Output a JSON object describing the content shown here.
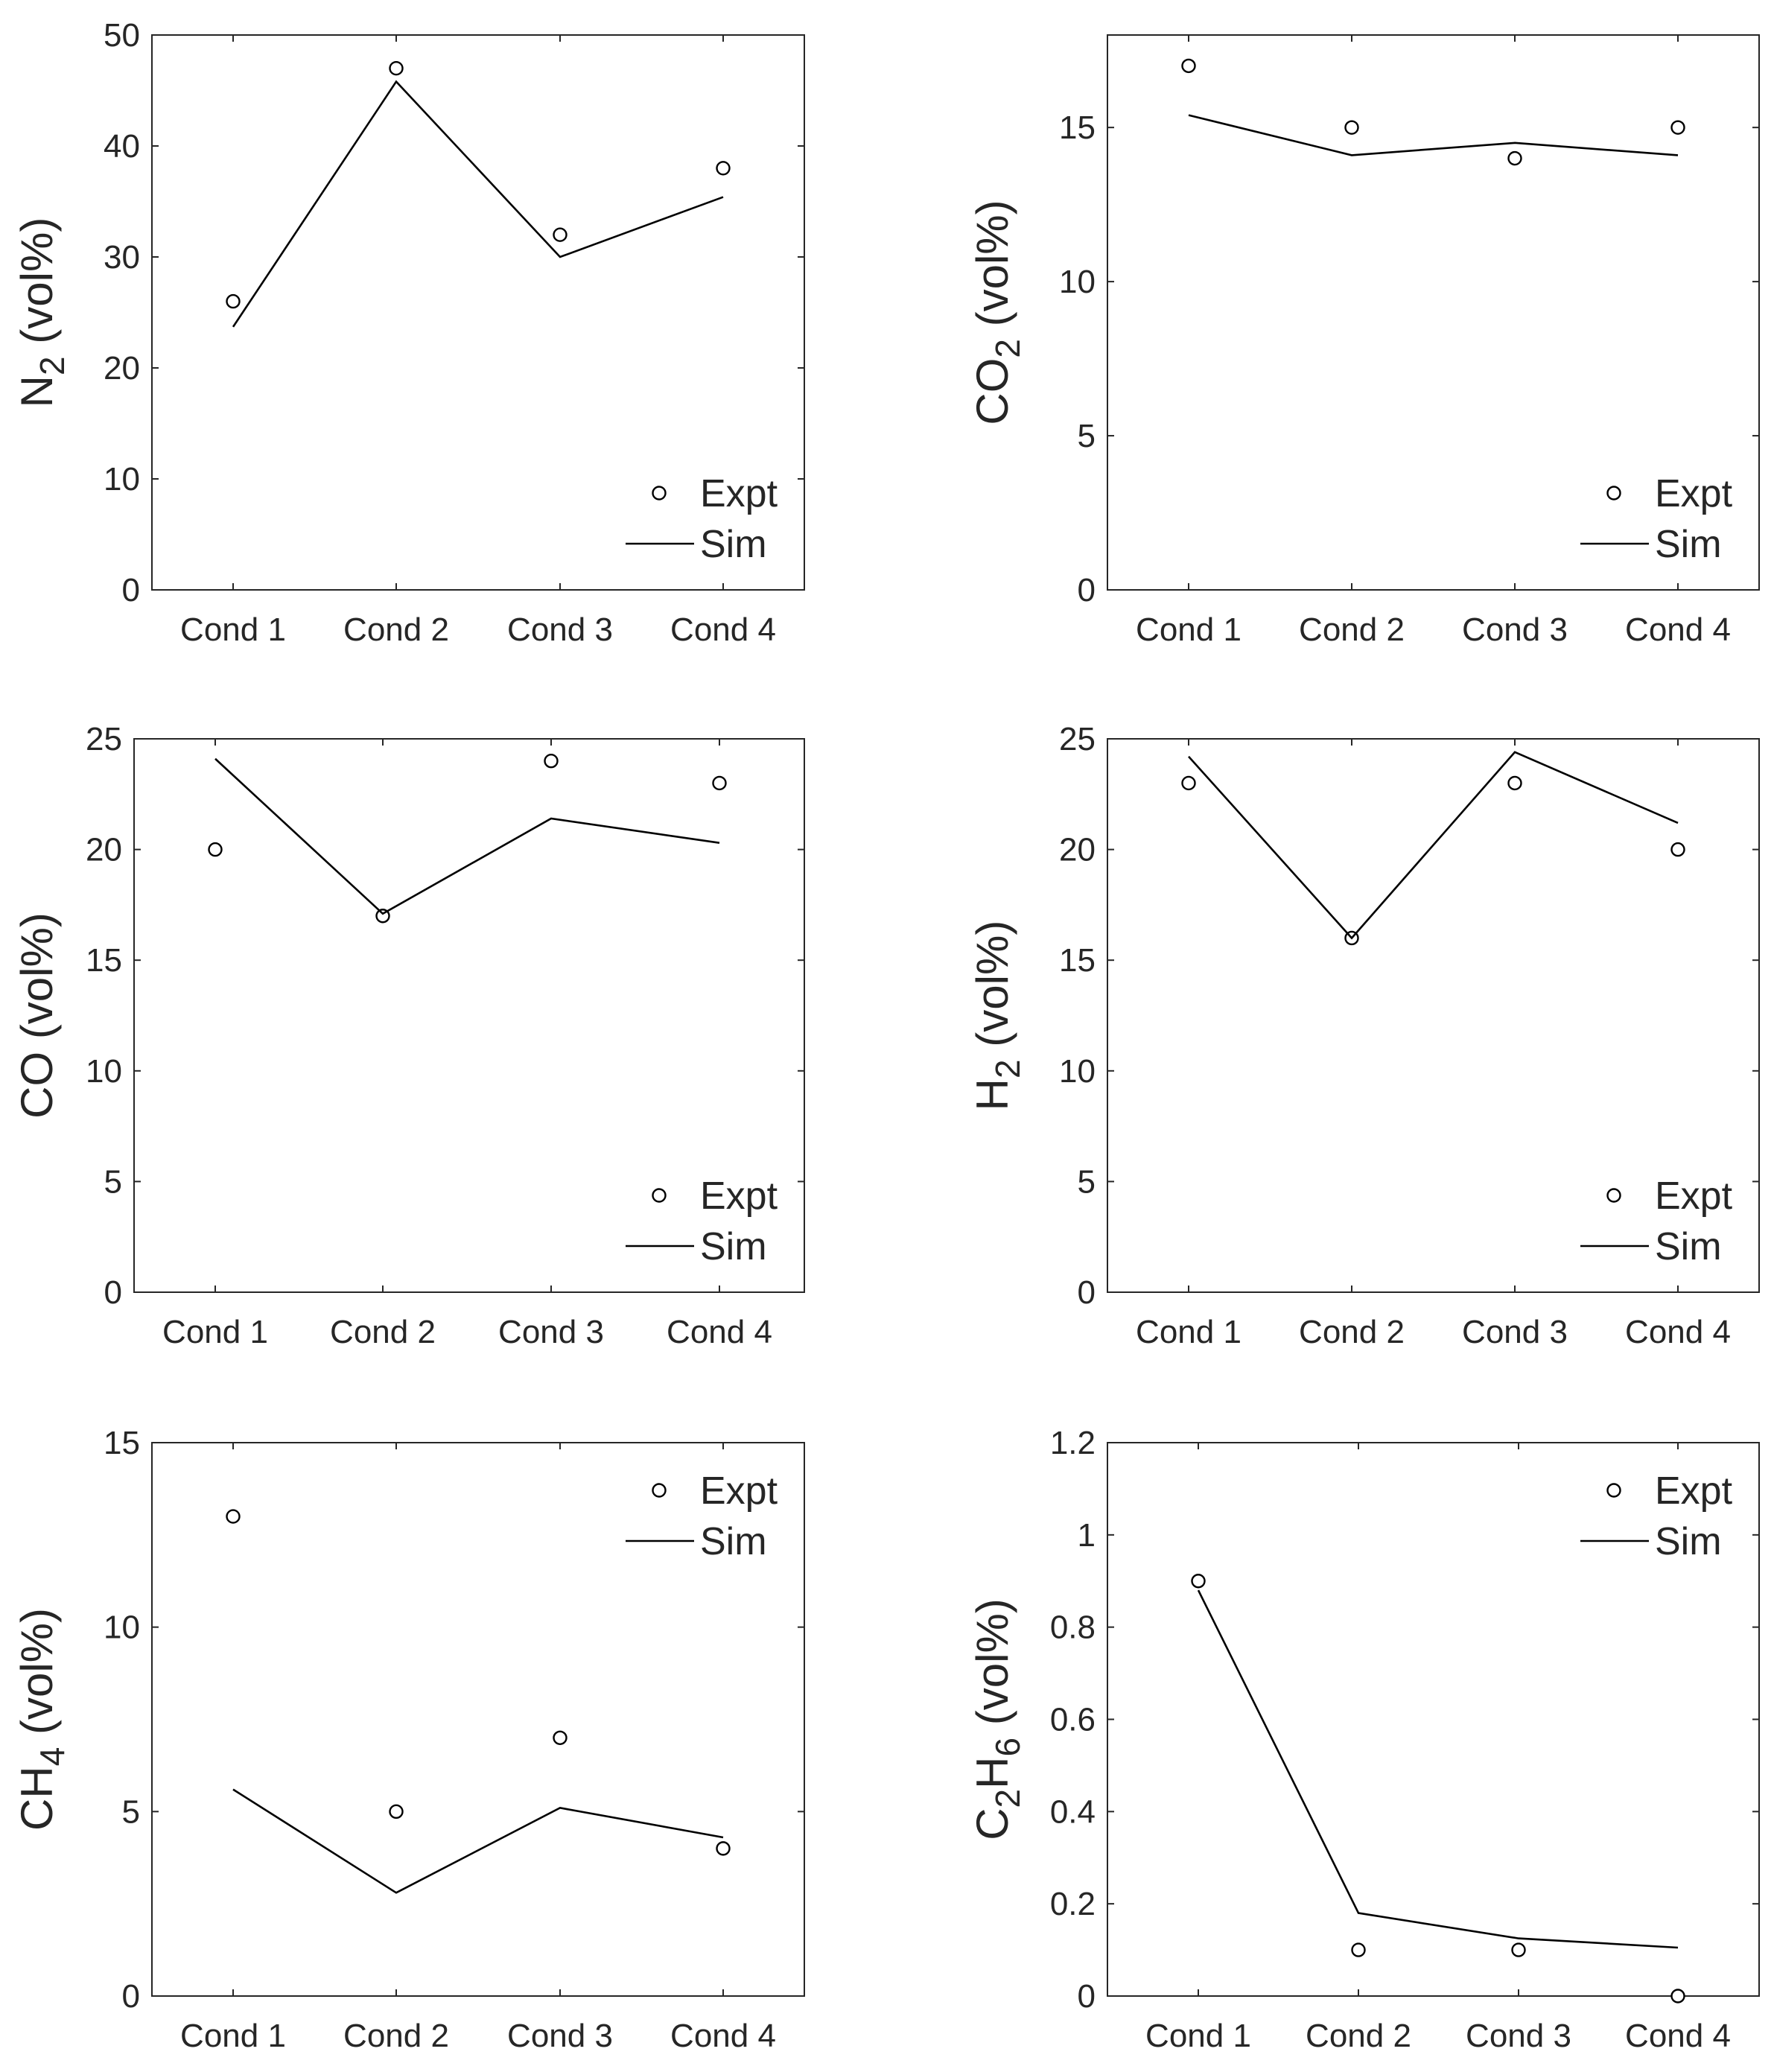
{
  "chart_data": [
    {
      "type": "line",
      "title": "",
      "xlabel": "",
      "ylabel": {
        "main": "N",
        "sub": "2",
        "suffix": " (vol%)"
      },
      "categories": [
        "Cond 1",
        "Cond 2",
        "Cond 3",
        "Cond 4"
      ],
      "ylim": [
        0,
        50
      ],
      "yticks": [
        0,
        10,
        20,
        30,
        40,
        50
      ],
      "ytick_labels": [
        "0",
        "10",
        "20",
        "30",
        "40",
        "50"
      ],
      "legend": {
        "position": "bottom-right",
        "labels": [
          "Expt",
          "Sim"
        ]
      },
      "series": [
        {
          "name": "Expt",
          "style": "markers",
          "values": [
            26,
            47,
            32,
            38
          ]
        },
        {
          "name": "Sim",
          "style": "line",
          "values": [
            23.7,
            45.8,
            30.0,
            35.4
          ]
        }
      ]
    },
    {
      "type": "line",
      "title": "",
      "xlabel": "",
      "ylabel": {
        "main": "CO",
        "sub": "2",
        "suffix": " (vol%)"
      },
      "categories": [
        "Cond 1",
        "Cond 2",
        "Cond 3",
        "Cond 4"
      ],
      "ylim": [
        0,
        18
      ],
      "yticks": [
        0,
        5,
        10,
        15
      ],
      "ytick_labels": [
        "0",
        "5",
        "10",
        "15"
      ],
      "legend": {
        "position": "bottom-right",
        "labels": [
          "Expt",
          "Sim"
        ]
      },
      "series": [
        {
          "name": "Expt",
          "style": "markers",
          "values": [
            17,
            15,
            14,
            15
          ]
        },
        {
          "name": "Sim",
          "style": "line",
          "values": [
            15.4,
            14.1,
            14.5,
            14.1
          ]
        }
      ]
    },
    {
      "type": "line",
      "title": "",
      "xlabel": "",
      "ylabel": {
        "main": "CO",
        "sub": "",
        "suffix": " (vol%)"
      },
      "categories": [
        "Cond 1",
        "Cond 2",
        "Cond 3",
        "Cond 4"
      ],
      "ylim": [
        0,
        25
      ],
      "yticks": [
        0,
        5,
        10,
        15,
        20,
        25
      ],
      "ytick_labels": [
        "0",
        "5",
        "10",
        "15",
        "20",
        "25"
      ],
      "legend": {
        "position": "bottom-right",
        "labels": [
          "Expt",
          "Sim"
        ]
      },
      "series": [
        {
          "name": "Expt",
          "style": "markers",
          "values": [
            20,
            17,
            24,
            23
          ]
        },
        {
          "name": "Sim",
          "style": "line",
          "values": [
            24.1,
            17.1,
            21.4,
            20.3
          ]
        }
      ]
    },
    {
      "type": "line",
      "title": "",
      "xlabel": "",
      "ylabel": {
        "main": "H",
        "sub": "2",
        "suffix": " (vol%)"
      },
      "categories": [
        "Cond 1",
        "Cond 2",
        "Cond 3",
        "Cond 4"
      ],
      "ylim": [
        0,
        25
      ],
      "yticks": [
        0,
        5,
        10,
        15,
        20,
        25
      ],
      "ytick_labels": [
        "0",
        "5",
        "10",
        "15",
        "20",
        "25"
      ],
      "legend": {
        "position": "bottom-right",
        "labels": [
          "Expt",
          "Sim"
        ]
      },
      "series": [
        {
          "name": "Expt",
          "style": "markers",
          "values": [
            23,
            16,
            23,
            20
          ]
        },
        {
          "name": "Sim",
          "style": "line",
          "values": [
            24.2,
            16.0,
            24.4,
            21.2
          ]
        }
      ]
    },
    {
      "type": "line",
      "title": "",
      "xlabel": "",
      "ylabel": {
        "main": "CH",
        "sub": "4",
        "suffix": " (vol%)"
      },
      "categories": [
        "Cond 1",
        "Cond 2",
        "Cond 3",
        "Cond 4"
      ],
      "ylim": [
        0,
        15
      ],
      "yticks": [
        0,
        5,
        10,
        15
      ],
      "ytick_labels": [
        "0",
        "5",
        "10",
        "15"
      ],
      "legend": {
        "position": "top-right",
        "labels": [
          "Expt",
          "Sim"
        ]
      },
      "series": [
        {
          "name": "Expt",
          "style": "markers",
          "values": [
            13,
            5,
            7,
            4
          ]
        },
        {
          "name": "Sim",
          "style": "line",
          "values": [
            5.6,
            2.8,
            5.1,
            4.3
          ]
        }
      ]
    },
    {
      "type": "line",
      "title": "",
      "xlabel": "",
      "ylabel": {
        "parts": [
          {
            "t": "C",
            "sub": "2"
          },
          {
            "t": "H",
            "sub": "6"
          }
        ],
        "suffix": " (vol%)"
      },
      "categories": [
        "Cond 1",
        "Cond 2",
        "Cond 3",
        "Cond 4"
      ],
      "ylim": [
        0,
        1.2
      ],
      "yticks": [
        0,
        0.2,
        0.4,
        0.6,
        0.8,
        1,
        1.2
      ],
      "ytick_labels": [
        "0",
        "0.2",
        "0.4",
        "0.6",
        "0.8",
        "1",
        "1.2"
      ],
      "legend": {
        "position": "top-right",
        "labels": [
          "Expt",
          "Sim"
        ]
      },
      "series": [
        {
          "name": "Expt",
          "style": "markers",
          "values": [
            0.9,
            0.1,
            0.1,
            0.0
          ]
        },
        {
          "name": "Sim",
          "style": "line",
          "values": [
            0.88,
            0.18,
            0.125,
            0.105
          ]
        }
      ]
    }
  ]
}
